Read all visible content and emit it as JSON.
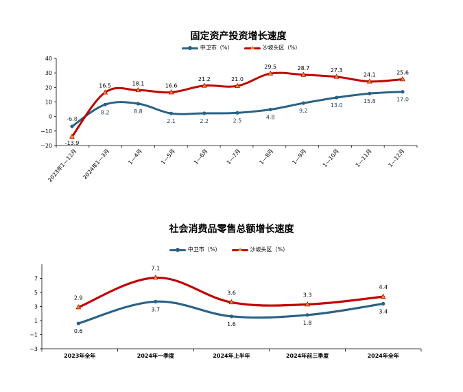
{
  "chart_data": [
    {
      "type": "line",
      "title": "固定资产投资增长速度",
      "categories": [
        "2023年1—12月",
        "2024年1—3月",
        "1—4月",
        "1—5月",
        "1—6月",
        "1—7月",
        "1—8月",
        "1—9月",
        "1—10月",
        "1—11月",
        "1—12月"
      ],
      "series": [
        {
          "name": "中卫市（%）",
          "color": "#2a6186",
          "marker": "circle",
          "values": [
            -6.8,
            8.2,
            8.8,
            2.1,
            2.2,
            2.5,
            4.8,
            9.2,
            13.0,
            15.8,
            17.0
          ],
          "labels": [
            "-6.8",
            "8.2",
            "8.8",
            "2.1",
            "2.2",
            "2.5",
            "4.8",
            "9.2",
            "13.0",
            "15.8",
            "17.0"
          ]
        },
        {
          "name": "沙坡头区（%）",
          "color": "#c00000",
          "marker": "triangle",
          "values": [
            -13.9,
            16.5,
            18.1,
            16.6,
            21.2,
            21.0,
            29.5,
            28.7,
            27.3,
            24.1,
            25.6
          ],
          "labels": [
            "-13.9",
            "16.5",
            "18.1",
            "16.6",
            "21.2",
            "21.0",
            "29.5",
            "28.7",
            "27.3",
            "24.1",
            "25.6"
          ]
        }
      ],
      "ylim": [
        -20,
        40
      ],
      "yticks": [
        "40",
        "30",
        "20",
        "10",
        "0",
        "−10",
        "−20"
      ],
      "legend": "top"
    },
    {
      "type": "line",
      "title": "社会消费品零售总额增长速度",
      "categories": [
        "2023年全年",
        "2024年一季度",
        "2024年上半年",
        "2024年前三季度",
        "2024年全年"
      ],
      "series": [
        {
          "name": "中卫市（%）",
          "color": "#2a6186",
          "marker": "circle",
          "values": [
            0.6,
            3.7,
            1.6,
            1.8,
            3.4
          ],
          "labels": [
            "0.6",
            "3.7",
            "1.6",
            "1.8",
            "3.4"
          ]
        },
        {
          "name": "沙坡头区（%）",
          "color": "#c00000",
          "marker": "triangle",
          "values": [
            2.9,
            7.1,
            3.6,
            3.3,
            4.4
          ],
          "labels": [
            "2.9",
            "7.1",
            "3.6",
            "3.3",
            "4.4"
          ]
        }
      ],
      "ylim": [
        -3,
        9
      ],
      "yticks": [
        "7",
        "5",
        "3",
        "1",
        "−1",
        "−3"
      ],
      "legend": "top"
    }
  ]
}
